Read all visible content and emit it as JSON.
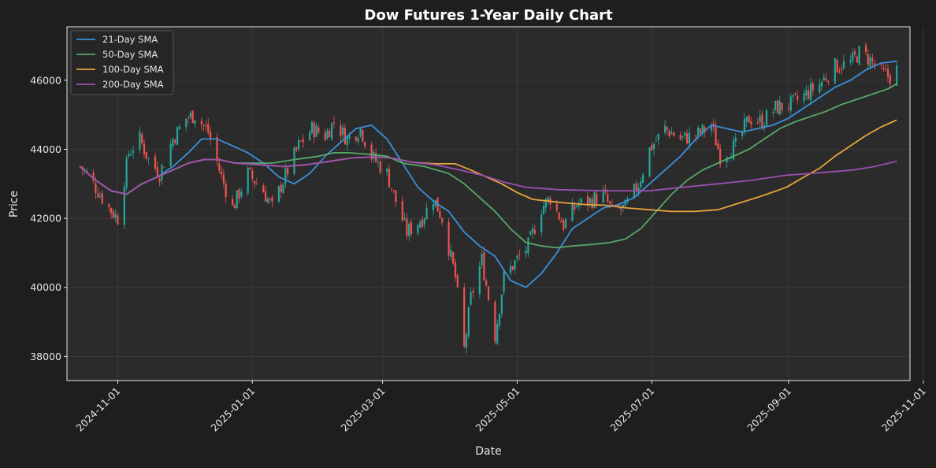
{
  "chart_data": {
    "type": "line",
    "title": "Dow Futures 1-Year Daily Chart",
    "xlabel": "Date",
    "ylabel": "Price",
    "xlim": [
      "2024-10-09",
      "2025-10-26"
    ],
    "ylim": [
      37300,
      47550
    ],
    "x_ticks": [
      "2024-11-01",
      "2025-01-01",
      "2025-03-01",
      "2025-05-01",
      "2025-07-01",
      "2025-09-01",
      "2025-11-01"
    ],
    "y_ticks": [
      38000,
      40000,
      42000,
      44000,
      46000
    ],
    "grid": true,
    "legend_position": "top-left",
    "candles": {
      "up_color": "#26a69a",
      "down_color": "#ef5350",
      "series_name": "",
      "close_points": [
        [
          "2024-10-15",
          43500
        ],
        [
          "2024-10-18",
          43300
        ],
        [
          "2024-10-23",
          42800
        ],
        [
          "2024-10-28",
          42300
        ],
        [
          "2024-11-01",
          42000
        ],
        [
          "2024-11-06",
          43900
        ],
        [
          "2024-11-11",
          44300
        ],
        [
          "2024-11-15",
          43700
        ],
        [
          "2024-11-20",
          43300
        ],
        [
          "2024-11-26",
          44300
        ],
        [
          "2024-12-02",
          44900
        ],
        [
          "2024-12-06",
          45000
        ],
        [
          "2024-12-12",
          44500
        ],
        [
          "2024-12-18",
          43200
        ],
        [
          "2024-12-23",
          42300
        ],
        [
          "2024-12-30",
          43300
        ],
        [
          "2025-01-06",
          42800
        ],
        [
          "2025-01-10",
          42300
        ],
        [
          "2025-01-15",
          43100
        ],
        [
          "2025-01-22",
          44100
        ],
        [
          "2025-01-28",
          44600
        ],
        [
          "2025-02-03",
          44400
        ],
        [
          "2025-02-07",
          44800
        ],
        [
          "2025-02-13",
          44300
        ],
        [
          "2025-02-19",
          44600
        ],
        [
          "2025-02-24",
          43800
        ],
        [
          "2025-03-03",
          43300
        ],
        [
          "2025-03-07",
          42500
        ],
        [
          "2025-03-12",
          41600
        ],
        [
          "2025-03-19",
          42000
        ],
        [
          "2025-03-24",
          42600
        ],
        [
          "2025-03-28",
          42000
        ],
        [
          "2025-04-03",
          40300
        ],
        [
          "2025-04-07",
          38200
        ],
        [
          "2025-04-10",
          39700
        ],
        [
          "2025-04-15",
          40800
        ],
        [
          "2025-04-21",
          38600
        ],
        [
          "2025-04-25",
          40300
        ],
        [
          "2025-05-01",
          40800
        ],
        [
          "2025-05-06",
          41200
        ],
        [
          "2025-05-12",
          42300
        ],
        [
          "2025-05-16",
          42600
        ],
        [
          "2025-05-22",
          41800
        ],
        [
          "2025-05-28",
          42400
        ],
        [
          "2025-06-03",
          42500
        ],
        [
          "2025-06-09",
          42700
        ],
        [
          "2025-06-13",
          42200
        ],
        [
          "2025-06-19",
          42300
        ],
        [
          "2025-06-25",
          43000
        ],
        [
          "2025-06-30",
          44000
        ],
        [
          "2025-07-07",
          44600
        ],
        [
          "2025-07-14",
          44300
        ],
        [
          "2025-07-21",
          44400
        ],
        [
          "2025-07-28",
          44700
        ],
        [
          "2025-08-01",
          43800
        ],
        [
          "2025-08-08",
          44100
        ],
        [
          "2025-08-14",
          44900
        ],
        [
          "2025-08-20",
          44800
        ],
        [
          "2025-08-26",
          45200
        ],
        [
          "2025-09-02",
          45300
        ],
        [
          "2025-09-09",
          45600
        ],
        [
          "2025-09-15",
          45900
        ],
        [
          "2025-09-22",
          46400
        ],
        [
          "2025-09-29",
          46500
        ],
        [
          "2025-10-03",
          46800
        ],
        [
          "2025-10-08",
          46600
        ],
        [
          "2025-10-13",
          46200
        ],
        [
          "2025-10-17",
          46100
        ],
        [
          "2025-10-20",
          46300
        ]
      ]
    },
    "series": [
      {
        "name": "21-Day SMA",
        "color": "#3a8fd9",
        "points": [
          [
            "2024-10-15",
            43500
          ],
          [
            "2024-10-22",
            43100
          ],
          [
            "2024-10-29",
            42800
          ],
          [
            "2024-11-05",
            42700
          ],
          [
            "2024-11-12",
            43000
          ],
          [
            "2024-11-19",
            43200
          ],
          [
            "2024-11-26",
            43500
          ],
          [
            "2024-12-03",
            43900
          ],
          [
            "2024-12-09",
            44300
          ],
          [
            "2024-12-16",
            44300
          ],
          [
            "2024-12-23",
            44100
          ],
          [
            "2024-12-30",
            43900
          ],
          [
            "2025-01-06",
            43600
          ],
          [
            "2025-01-13",
            43200
          ],
          [
            "2025-01-20",
            43000
          ],
          [
            "2025-01-27",
            43300
          ],
          [
            "2025-02-03",
            43800
          ],
          [
            "2025-02-10",
            44200
          ],
          [
            "2025-02-17",
            44600
          ],
          [
            "2025-02-24",
            44700
          ],
          [
            "2025-03-03",
            44300
          ],
          [
            "2025-03-10",
            43600
          ],
          [
            "2025-03-17",
            42900
          ],
          [
            "2025-03-24",
            42500
          ],
          [
            "2025-03-31",
            42200
          ],
          [
            "2025-04-07",
            41600
          ],
          [
            "2025-04-14",
            41200
          ],
          [
            "2025-04-21",
            40900
          ],
          [
            "2025-04-28",
            40200
          ],
          [
            "2025-05-05",
            40000
          ],
          [
            "2025-05-12",
            40400
          ],
          [
            "2025-05-19",
            41000
          ],
          [
            "2025-05-26",
            41700
          ],
          [
            "2025-06-02",
            42000
          ],
          [
            "2025-06-09",
            42300
          ],
          [
            "2025-06-16",
            42400
          ],
          [
            "2025-06-23",
            42600
          ],
          [
            "2025-06-30",
            43000
          ],
          [
            "2025-07-07",
            43400
          ],
          [
            "2025-07-14",
            43800
          ],
          [
            "2025-07-21",
            44300
          ],
          [
            "2025-07-28",
            44700
          ],
          [
            "2025-08-04",
            44600
          ],
          [
            "2025-08-11",
            44500
          ],
          [
            "2025-08-18",
            44600
          ],
          [
            "2025-08-25",
            44700
          ],
          [
            "2025-09-01",
            44900
          ],
          [
            "2025-09-08",
            45200
          ],
          [
            "2025-09-15",
            45500
          ],
          [
            "2025-09-22",
            45800
          ],
          [
            "2025-09-29",
            46000
          ],
          [
            "2025-10-06",
            46300
          ],
          [
            "2025-10-13",
            46500
          ],
          [
            "2025-10-20",
            46550
          ]
        ]
      },
      {
        "name": "50-Day SMA",
        "color": "#55a868",
        "points": [
          [
            "2024-10-15",
            43500
          ],
          [
            "2024-10-22",
            43100
          ],
          [
            "2024-10-29",
            42800
          ],
          [
            "2024-11-05",
            42700
          ],
          [
            "2024-11-12",
            43000
          ],
          [
            "2024-11-19",
            43200
          ],
          [
            "2024-11-26",
            43400
          ],
          [
            "2024-12-03",
            43600
          ],
          [
            "2024-12-10",
            43700
          ],
          [
            "2024-12-17",
            43700
          ],
          [
            "2024-12-24",
            43600
          ],
          [
            "2024-12-31",
            43600
          ],
          [
            "2025-01-10",
            43600
          ],
          [
            "2025-01-20",
            43700
          ],
          [
            "2025-01-31",
            43800
          ],
          [
            "2025-02-07",
            43900
          ],
          [
            "2025-02-14",
            43900
          ],
          [
            "2025-02-24",
            43850
          ],
          [
            "2025-03-03",
            43800
          ],
          [
            "2025-03-10",
            43600
          ],
          [
            "2025-03-20",
            43500
          ],
          [
            "2025-03-31",
            43300
          ],
          [
            "2025-04-07",
            43000
          ],
          [
            "2025-04-14",
            42600
          ],
          [
            "2025-04-21",
            42200
          ],
          [
            "2025-04-28",
            41700
          ],
          [
            "2025-05-05",
            41300
          ],
          [
            "2025-05-12",
            41200
          ],
          [
            "2025-05-19",
            41150
          ],
          [
            "2025-05-26",
            41200
          ],
          [
            "2025-06-05",
            41250
          ],
          [
            "2025-06-12",
            41300
          ],
          [
            "2025-06-19",
            41400
          ],
          [
            "2025-06-26",
            41700
          ],
          [
            "2025-07-03",
            42200
          ],
          [
            "2025-07-10",
            42700
          ],
          [
            "2025-07-17",
            43100
          ],
          [
            "2025-07-24",
            43400
          ],
          [
            "2025-07-31",
            43600
          ],
          [
            "2025-08-07",
            43800
          ],
          [
            "2025-08-14",
            44000
          ],
          [
            "2025-08-21",
            44300
          ],
          [
            "2025-08-28",
            44600
          ],
          [
            "2025-09-04",
            44800
          ],
          [
            "2025-09-11",
            44950
          ],
          [
            "2025-09-18",
            45100
          ],
          [
            "2025-09-25",
            45300
          ],
          [
            "2025-10-02",
            45450
          ],
          [
            "2025-10-09",
            45600
          ],
          [
            "2025-10-16",
            45750
          ],
          [
            "2025-10-20",
            45900
          ]
        ]
      },
      {
        "name": "100-Day SMA",
        "color": "#e8a33d",
        "points": [
          [
            "2024-10-15",
            43500
          ],
          [
            "2024-10-22",
            43100
          ],
          [
            "2024-10-29",
            42800
          ],
          [
            "2024-11-05",
            42700
          ],
          [
            "2024-11-12",
            43000
          ],
          [
            "2024-11-19",
            43200
          ],
          [
            "2024-11-26",
            43400
          ],
          [
            "2024-12-03",
            43600
          ],
          [
            "2024-12-10",
            43700
          ],
          [
            "2024-12-17",
            43700
          ],
          [
            "2024-12-24",
            43600
          ],
          [
            "2025-01-05",
            43550
          ],
          [
            "2025-01-15",
            43500
          ],
          [
            "2025-01-25",
            43550
          ],
          [
            "2025-02-05",
            43650
          ],
          [
            "2025-02-15",
            43750
          ],
          [
            "2025-02-25",
            43780
          ],
          [
            "2025-03-05",
            43750
          ],
          [
            "2025-03-15",
            43620
          ],
          [
            "2025-03-25",
            43580
          ],
          [
            "2025-04-03",
            43580
          ],
          [
            "2025-04-10",
            43400
          ],
          [
            "2025-04-17",
            43200
          ],
          [
            "2025-04-24",
            43000
          ],
          [
            "2025-05-01",
            42750
          ],
          [
            "2025-05-08",
            42550
          ],
          [
            "2025-05-15",
            42500
          ],
          [
            "2025-05-22",
            42450
          ],
          [
            "2025-06-01",
            42400
          ],
          [
            "2025-06-10",
            42380
          ],
          [
            "2025-06-20",
            42300
          ],
          [
            "2025-06-30",
            42250
          ],
          [
            "2025-07-10",
            42200
          ],
          [
            "2025-07-20",
            42200
          ],
          [
            "2025-07-31",
            42250
          ],
          [
            "2025-08-10",
            42450
          ],
          [
            "2025-08-20",
            42650
          ],
          [
            "2025-08-31",
            42900
          ],
          [
            "2025-09-08",
            43200
          ],
          [
            "2025-09-15",
            43450
          ],
          [
            "2025-09-22",
            43800
          ],
          [
            "2025-09-29",
            44100
          ],
          [
            "2025-10-06",
            44400
          ],
          [
            "2025-10-13",
            44650
          ],
          [
            "2025-10-20",
            44850
          ]
        ]
      },
      {
        "name": "200-Day SMA",
        "color": "#9b4fb0",
        "points": [
          [
            "2024-10-15",
            43500
          ],
          [
            "2024-10-22",
            43100
          ],
          [
            "2024-10-29",
            42800
          ],
          [
            "2024-11-05",
            42700
          ],
          [
            "2024-11-12",
            43000
          ],
          [
            "2024-11-19",
            43200
          ],
          [
            "2024-11-26",
            43400
          ],
          [
            "2024-12-03",
            43600
          ],
          [
            "2024-12-10",
            43700
          ],
          [
            "2024-12-17",
            43700
          ],
          [
            "2024-12-24",
            43600
          ],
          [
            "2025-01-05",
            43550
          ],
          [
            "2025-01-15",
            43500
          ],
          [
            "2025-01-25",
            43550
          ],
          [
            "2025-02-05",
            43650
          ],
          [
            "2025-02-15",
            43750
          ],
          [
            "2025-02-25",
            43780
          ],
          [
            "2025-03-05",
            43750
          ],
          [
            "2025-03-15",
            43620
          ],
          [
            "2025-03-25",
            43550
          ],
          [
            "2025-04-05",
            43400
          ],
          [
            "2025-04-15",
            43250
          ],
          [
            "2025-04-25",
            43050
          ],
          [
            "2025-05-05",
            42900
          ],
          [
            "2025-05-20",
            42830
          ],
          [
            "2025-06-10",
            42800
          ],
          [
            "2025-06-30",
            42800
          ],
          [
            "2025-07-15",
            42900
          ],
          [
            "2025-07-31",
            43000
          ],
          [
            "2025-08-15",
            43100
          ],
          [
            "2025-08-31",
            43250
          ],
          [
            "2025-09-15",
            43320
          ],
          [
            "2025-09-30",
            43400
          ],
          [
            "2025-10-10",
            43500
          ],
          [
            "2025-10-20",
            43650
          ]
        ]
      }
    ]
  }
}
